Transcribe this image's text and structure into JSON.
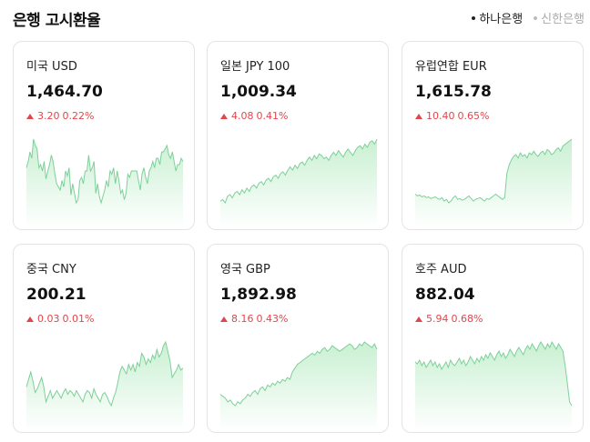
{
  "header": {
    "title": "은행 고시환율"
  },
  "banks": [
    {
      "label": "하나은행",
      "active": true
    },
    {
      "label": "신한은행",
      "active": false
    }
  ],
  "colors": {
    "up": "#e0474c",
    "line": "#7ed09a",
    "fill_top": "#c9f0d2",
    "fill_bottom": "#ffffff"
  },
  "cards": [
    {
      "name": "미국 USD",
      "rate": "1,464.70",
      "change": "3.20",
      "percent": "0.22%",
      "direction": "up",
      "spark": [
        28,
        24,
        18,
        22,
        10,
        14,
        16,
        28,
        26,
        30,
        24,
        35,
        30,
        26,
        20,
        24,
        32,
        38,
        40,
        42,
        36,
        40,
        30,
        33,
        28,
        45,
        38,
        44,
        50,
        48,
        36,
        34,
        38,
        30,
        30,
        20,
        30,
        28,
        24,
        44,
        38,
        46,
        50,
        46,
        42,
        36,
        40,
        30,
        32,
        28,
        38,
        30,
        36,
        44,
        42,
        48,
        44,
        32,
        34,
        30,
        30,
        30,
        30,
        36,
        42,
        32,
        28,
        34,
        38,
        30,
        28,
        24,
        28,
        22,
        22,
        26,
        18,
        18,
        16,
        14,
        20,
        22,
        18,
        24,
        30,
        26,
        26,
        22,
        24
      ]
    },
    {
      "name": "일본 JPY 100",
      "rate": "1,009.34",
      "change": "4.08",
      "percent": "0.41%",
      "direction": "up",
      "spark": [
        78,
        76,
        80,
        72,
        70,
        74,
        68,
        66,
        70,
        64,
        68,
        62,
        66,
        60,
        58,
        62,
        56,
        54,
        58,
        52,
        50,
        54,
        48,
        46,
        50,
        44,
        42,
        46,
        40,
        36,
        40,
        34,
        38,
        32,
        30,
        34,
        28,
        24,
        28,
        22,
        26,
        20,
        22,
        26,
        24,
        28,
        22,
        18,
        22,
        16,
        20,
        24,
        18,
        14,
        18,
        22,
        16,
        12,
        10,
        14,
        8,
        12,
        6,
        4,
        8,
        2
      ]
    },
    {
      "name": "유럽연합 EUR",
      "rate": "1,615.78",
      "change": "10.40",
      "percent": "0.65%",
      "direction": "up",
      "spark": [
        64,
        66,
        65,
        67,
        66,
        68,
        67,
        69,
        68,
        67,
        69,
        70,
        68,
        72,
        70,
        74,
        72,
        68,
        66,
        70,
        69,
        71,
        70,
        68,
        66,
        69,
        72,
        70,
        69,
        68,
        70,
        72,
        69,
        70,
        68,
        66,
        64,
        66,
        68,
        70,
        68,
        40,
        30,
        24,
        20,
        18,
        22,
        16,
        20,
        18,
        22,
        16,
        18,
        14,
        18,
        20,
        16,
        14,
        18,
        12,
        14,
        18,
        16,
        12,
        10,
        14,
        8,
        6,
        4,
        2,
        0
      ]
    },
    {
      "name": "중국 CNY",
      "rate": "200.21",
      "change": "0.03",
      "percent": "0.01%",
      "direction": "up",
      "spark": [
        54,
        46,
        38,
        48,
        60,
        56,
        50,
        44,
        54,
        70,
        64,
        58,
        66,
        62,
        58,
        62,
        66,
        60,
        56,
        62,
        58,
        60,
        64,
        58,
        62,
        66,
        70,
        62,
        58,
        60,
        66,
        56,
        62,
        66,
        70,
        62,
        60,
        64,
        70,
        74,
        66,
        60,
        50,
        38,
        32,
        36,
        40,
        30,
        36,
        30,
        38,
        28,
        32,
        18,
        22,
        30,
        24,
        28,
        20,
        24,
        14,
        22,
        18,
        10,
        6,
        16,
        26,
        44,
        40,
        36,
        30,
        36,
        34
      ]
    },
    {
      "name": "영국 GBP",
      "rate": "1,892.98",
      "change": "8.16",
      "percent": "0.43%",
      "direction": "up",
      "spark": [
        56,
        58,
        60,
        64,
        62,
        66,
        68,
        64,
        66,
        62,
        60,
        56,
        58,
        54,
        52,
        56,
        50,
        48,
        52,
        46,
        48,
        44,
        46,
        42,
        44,
        40,
        42,
        38,
        40,
        32,
        28,
        24,
        22,
        20,
        18,
        16,
        14,
        12,
        14,
        10,
        12,
        8,
        6,
        10,
        8,
        4,
        6,
        8,
        10,
        8,
        6,
        4,
        2,
        4,
        8,
        6,
        2,
        4,
        0,
        2,
        4,
        6,
        2,
        8
      ]
    },
    {
      "name": "호주 AUD",
      "rate": "882.04",
      "change": "5.94",
      "percent": "0.68%",
      "direction": "up",
      "spark": [
        26,
        28,
        24,
        30,
        26,
        32,
        28,
        24,
        30,
        26,
        32,
        28,
        34,
        30,
        26,
        32,
        24,
        28,
        30,
        26,
        22,
        28,
        24,
        30,
        26,
        20,
        24,
        28,
        22,
        26,
        20,
        24,
        18,
        22,
        16,
        20,
        24,
        18,
        14,
        20,
        16,
        22,
        18,
        12,
        16,
        20,
        14,
        10,
        14,
        18,
        12,
        8,
        12,
        6,
        10,
        14,
        8,
        4,
        8,
        12,
        6,
        10,
        4,
        8,
        12,
        6,
        10,
        14,
        30,
        50,
        70,
        74
      ]
    }
  ]
}
